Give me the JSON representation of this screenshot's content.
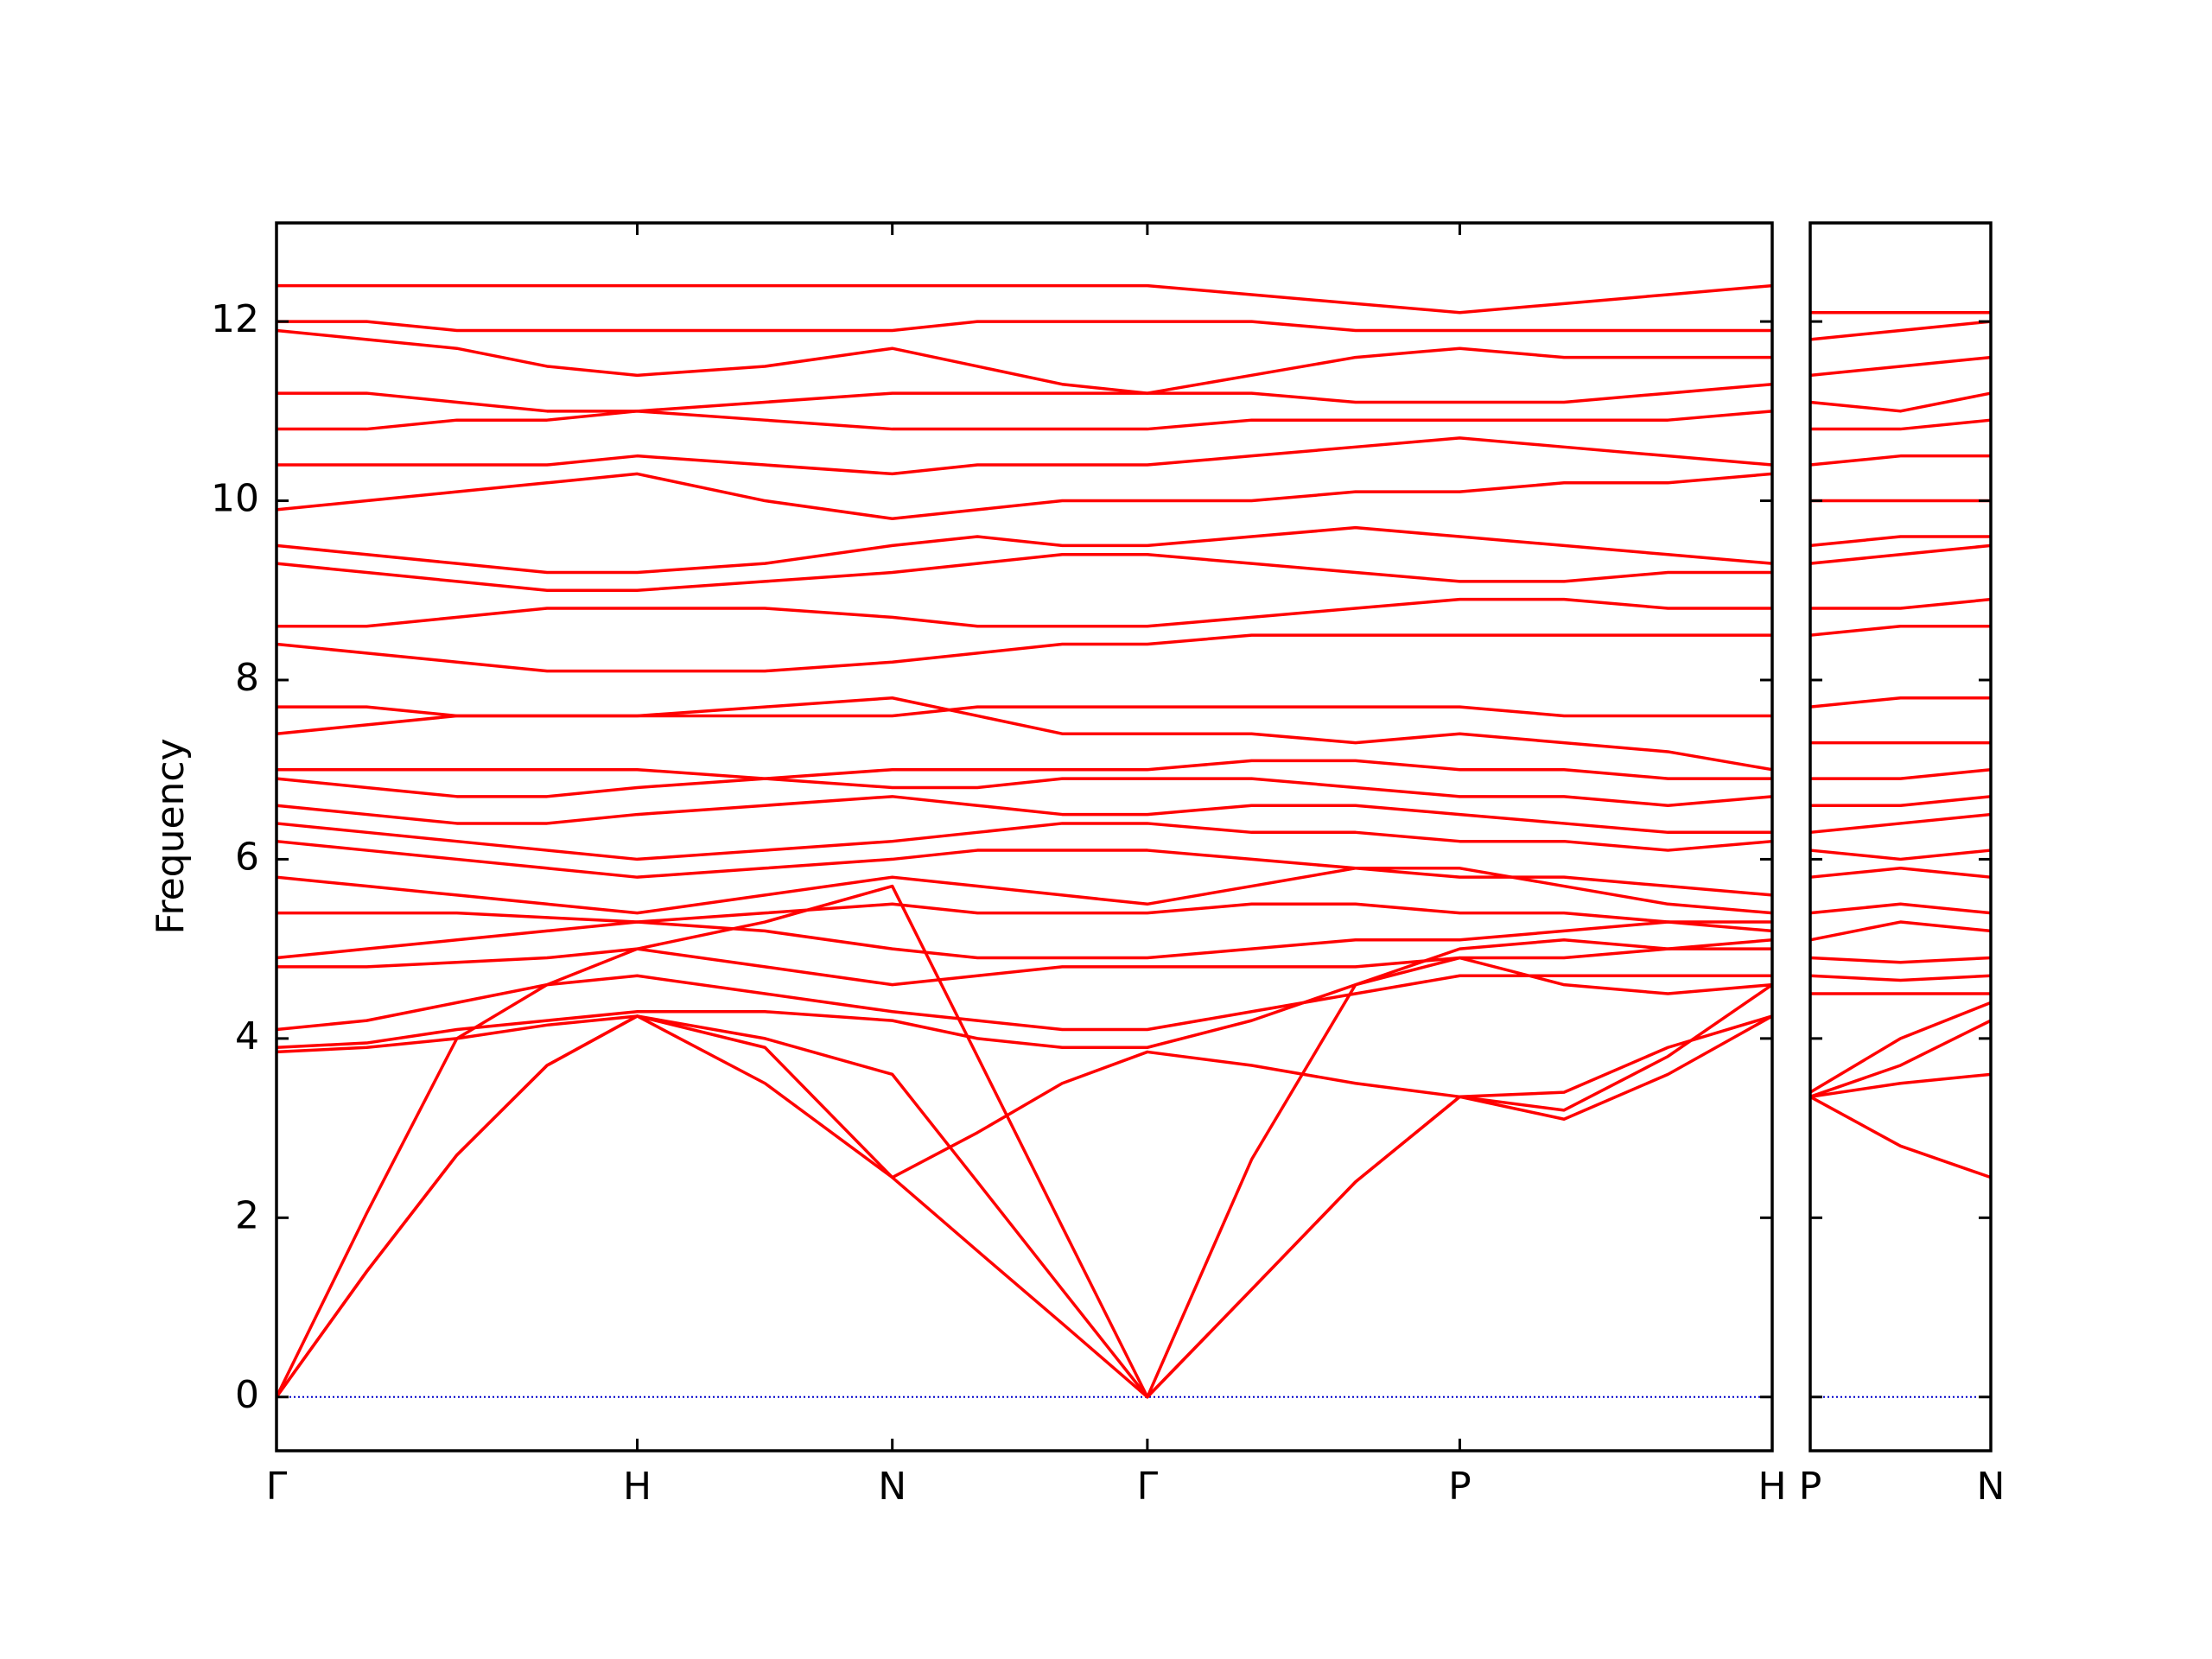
{
  "chart_data": [
    {
      "type": "line",
      "y_label": "Frequency",
      "color": "#ff0000",
      "x": [
        0,
        0.25,
        0.5,
        0.75,
        1,
        1.354,
        1.707,
        1.943,
        2.178,
        2.414,
        2.703,
        2.991,
        3.28,
        3.569,
        3.857,
        4.146
      ],
      "xlim": [
        0,
        4.146
      ],
      "xticks": [
        {
          "value": 0,
          "label": "Γ"
        },
        {
          "value": 1,
          "label": "H"
        },
        {
          "value": 1.707,
          "label": "N"
        },
        {
          "value": 2.414,
          "label": "Γ"
        },
        {
          "value": 3.28,
          "label": "P"
        },
        {
          "value": 4.146,
          "label": "H"
        }
      ],
      "ylim": [
        -0.6,
        13.1
      ],
      "yticks": [
        0,
        2,
        4,
        6,
        8,
        10,
        12
      ],
      "hline": {
        "y": 0,
        "color": "#0000cc"
      },
      "series": [
        {
          "values": [
            0,
            1.4,
            2.7,
            3.7,
            4.25,
            3.5,
            2.45,
            1.63,
            0.82,
            0,
            1.2,
            2.4,
            3.35,
            3.1,
            3.6,
            4.25
          ]
        },
        {
          "values": [
            0,
            1.4,
            2.7,
            3.7,
            4.25,
            4.0,
            3.6,
            2.4,
            1.2,
            0,
            1.2,
            2.4,
            3.35,
            3.2,
            3.8,
            4.6
          ]
        },
        {
          "values": [
            0,
            2.05,
            4.0,
            4.6,
            5.0,
            5.3,
            5.7,
            3.8,
            1.9,
            0,
            2.65,
            4.6,
            5.0,
            5.1,
            5.0,
            5.0
          ]
        },
        {
          "values": [
            3.85,
            3.9,
            4.0,
            4.15,
            4.25,
            3.9,
            2.45,
            2.95,
            3.5,
            3.85,
            3.7,
            3.5,
            3.35,
            3.4,
            3.9,
            4.25
          ]
        },
        {
          "values": [
            3.9,
            3.95,
            4.1,
            4.2,
            4.3,
            4.3,
            4.2,
            4.0,
            3.9,
            3.9,
            4.2,
            4.6,
            4.9,
            4.6,
            4.5,
            4.6
          ]
        },
        {
          "values": [
            4.1,
            4.2,
            4.4,
            4.6,
            4.7,
            4.5,
            4.3,
            4.2,
            4.1,
            4.1,
            4.3,
            4.5,
            4.7,
            4.7,
            4.7,
            4.7
          ]
        },
        {
          "values": [
            4.8,
            4.8,
            4.85,
            4.9,
            5.0,
            4.8,
            4.6,
            4.7,
            4.8,
            4.8,
            4.8,
            4.8,
            4.9,
            4.9,
            5.0,
            5.1
          ]
        },
        {
          "values": [
            4.9,
            5.0,
            5.1,
            5.2,
            5.3,
            5.2,
            5.0,
            4.9,
            4.9,
            4.9,
            5.0,
            5.1,
            5.1,
            5.2,
            5.3,
            5.2
          ]
        },
        {
          "values": [
            5.4,
            5.4,
            5.4,
            5.35,
            5.3,
            5.4,
            5.5,
            5.4,
            5.4,
            5.4,
            5.5,
            5.5,
            5.4,
            5.4,
            5.3,
            5.3
          ]
        },
        {
          "values": [
            5.8,
            5.7,
            5.6,
            5.5,
            5.4,
            5.6,
            5.8,
            5.7,
            5.6,
            5.5,
            5.7,
            5.9,
            5.9,
            5.7,
            5.5,
            5.4
          ]
        },
        {
          "values": [
            6.2,
            6.1,
            6.0,
            5.9,
            5.8,
            5.9,
            6.0,
            6.1,
            6.1,
            6.1,
            6.0,
            5.9,
            5.8,
            5.8,
            5.7,
            5.6
          ]
        },
        {
          "values": [
            6.4,
            6.3,
            6.2,
            6.1,
            6.0,
            6.1,
            6.2,
            6.3,
            6.4,
            6.4,
            6.3,
            6.3,
            6.2,
            6.2,
            6.1,
            6.2
          ]
        },
        {
          "values": [
            6.6,
            6.5,
            6.4,
            6.4,
            6.5,
            6.6,
            6.7,
            6.6,
            6.5,
            6.5,
            6.6,
            6.6,
            6.5,
            6.4,
            6.3,
            6.3
          ]
        },
        {
          "values": [
            6.9,
            6.8,
            6.7,
            6.7,
            6.8,
            6.9,
            6.8,
            6.8,
            6.9,
            6.9,
            6.9,
            6.8,
            6.7,
            6.7,
            6.6,
            6.7
          ]
        },
        {
          "values": [
            7.0,
            7.0,
            7.0,
            7.0,
            7.0,
            6.9,
            7.0,
            7.0,
            7.0,
            7.0,
            7.1,
            7.1,
            7.0,
            7.0,
            6.9,
            6.9
          ]
        },
        {
          "values": [
            7.4,
            7.5,
            7.6,
            7.6,
            7.6,
            7.7,
            7.8,
            7.6,
            7.4,
            7.4,
            7.4,
            7.3,
            7.4,
            7.3,
            7.2,
            7.0
          ]
        },
        {
          "values": [
            7.7,
            7.7,
            7.6,
            7.6,
            7.6,
            7.6,
            7.6,
            7.7,
            7.7,
            7.7,
            7.7,
            7.7,
            7.7,
            7.6,
            7.6,
            7.6
          ]
        },
        {
          "values": [
            8.4,
            8.3,
            8.2,
            8.1,
            8.1,
            8.1,
            8.2,
            8.3,
            8.4,
            8.4,
            8.5,
            8.5,
            8.5,
            8.5,
            8.5,
            8.5
          ]
        },
        {
          "values": [
            8.6,
            8.6,
            8.7,
            8.8,
            8.8,
            8.8,
            8.7,
            8.6,
            8.6,
            8.6,
            8.7,
            8.8,
            8.9,
            8.9,
            8.8,
            8.8
          ]
        },
        {
          "values": [
            9.3,
            9.2,
            9.1,
            9.0,
            9.0,
            9.1,
            9.2,
            9.3,
            9.4,
            9.4,
            9.3,
            9.2,
            9.1,
            9.1,
            9.2,
            9.2
          ]
        },
        {
          "values": [
            9.5,
            9.4,
            9.3,
            9.2,
            9.2,
            9.3,
            9.5,
            9.6,
            9.5,
            9.5,
            9.6,
            9.7,
            9.6,
            9.5,
            9.4,
            9.3
          ]
        },
        {
          "values": [
            9.9,
            10.0,
            10.1,
            10.2,
            10.3,
            10.0,
            9.8,
            9.9,
            10.0,
            10.0,
            10.0,
            10.1,
            10.1,
            10.2,
            10.2,
            10.3
          ]
        },
        {
          "values": [
            10.4,
            10.4,
            10.4,
            10.4,
            10.5,
            10.4,
            10.3,
            10.4,
            10.4,
            10.4,
            10.5,
            10.6,
            10.7,
            10.6,
            10.5,
            10.4
          ]
        },
        {
          "values": [
            10.8,
            10.8,
            10.9,
            10.9,
            11.0,
            10.9,
            10.8,
            10.8,
            10.8,
            10.8,
            10.9,
            10.9,
            10.9,
            10.9,
            10.9,
            11.0
          ]
        },
        {
          "values": [
            11.2,
            11.2,
            11.1,
            11.0,
            11.0,
            11.1,
            11.2,
            11.2,
            11.2,
            11.2,
            11.2,
            11.1,
            11.1,
            11.1,
            11.2,
            11.3
          ]
        },
        {
          "values": [
            11.9,
            11.8,
            11.7,
            11.5,
            11.4,
            11.5,
            11.7,
            11.5,
            11.3,
            11.2,
            11.4,
            11.6,
            11.7,
            11.6,
            11.6,
            11.6
          ]
        },
        {
          "values": [
            12.0,
            12.0,
            11.9,
            11.9,
            11.9,
            11.9,
            11.9,
            12.0,
            12.0,
            12.0,
            12.0,
            11.9,
            11.9,
            11.9,
            11.9,
            11.9
          ]
        },
        {
          "values": [
            12.4,
            12.4,
            12.4,
            12.4,
            12.4,
            12.4,
            12.4,
            12.4,
            12.4,
            12.4,
            12.3,
            12.2,
            12.1,
            12.2,
            12.3,
            12.4
          ]
        }
      ]
    },
    {
      "type": "line",
      "color": "#ff0000",
      "x": [
        4.146,
        4.396,
        4.646
      ],
      "xlim": [
        4.146,
        4.646
      ],
      "xticks": [
        {
          "value": 4.146,
          "label": "P"
        },
        {
          "value": 4.646,
          "label": "N"
        }
      ],
      "ylim": [
        -0.6,
        13.1
      ],
      "hline": {
        "y": 0,
        "color": "#0000cc"
      },
      "series": [
        {
          "values": [
            3.35,
            2.8,
            2.45
          ]
        },
        {
          "values": [
            3.35,
            3.5,
            3.6
          ]
        },
        {
          "values": [
            3.35,
            3.7,
            4.2
          ]
        },
        {
          "values": [
            3.4,
            4.0,
            4.4
          ]
        },
        {
          "values": [
            4.5,
            4.5,
            4.5
          ]
        },
        {
          "values": [
            4.7,
            4.65,
            4.7
          ]
        },
        {
          "values": [
            4.9,
            4.85,
            4.9
          ]
        },
        {
          "values": [
            5.1,
            5.3,
            5.2
          ]
        },
        {
          "values": [
            5.4,
            5.5,
            5.4
          ]
        },
        {
          "values": [
            5.8,
            5.9,
            5.8
          ]
        },
        {
          "values": [
            6.1,
            6.0,
            6.1
          ]
        },
        {
          "values": [
            6.3,
            6.4,
            6.5
          ]
        },
        {
          "values": [
            6.6,
            6.6,
            6.7
          ]
        },
        {
          "values": [
            6.9,
            6.9,
            7.0
          ]
        },
        {
          "values": [
            7.3,
            7.3,
            7.3
          ]
        },
        {
          "values": [
            7.7,
            7.8,
            7.8
          ]
        },
        {
          "values": [
            8.5,
            8.6,
            8.6
          ]
        },
        {
          "values": [
            8.8,
            8.8,
            8.9
          ]
        },
        {
          "values": [
            9.3,
            9.4,
            9.5
          ]
        },
        {
          "values": [
            9.5,
            9.6,
            9.6
          ]
        },
        {
          "values": [
            10.0,
            10.0,
            10.0
          ]
        },
        {
          "values": [
            10.4,
            10.5,
            10.5
          ]
        },
        {
          "values": [
            10.8,
            10.8,
            10.9
          ]
        },
        {
          "values": [
            11.1,
            11.0,
            11.2
          ]
        },
        {
          "values": [
            11.4,
            11.5,
            11.6
          ]
        },
        {
          "values": [
            11.8,
            11.9,
            12.0
          ]
        },
        {
          "values": [
            12.1,
            12.1,
            12.1
          ]
        }
      ]
    }
  ]
}
